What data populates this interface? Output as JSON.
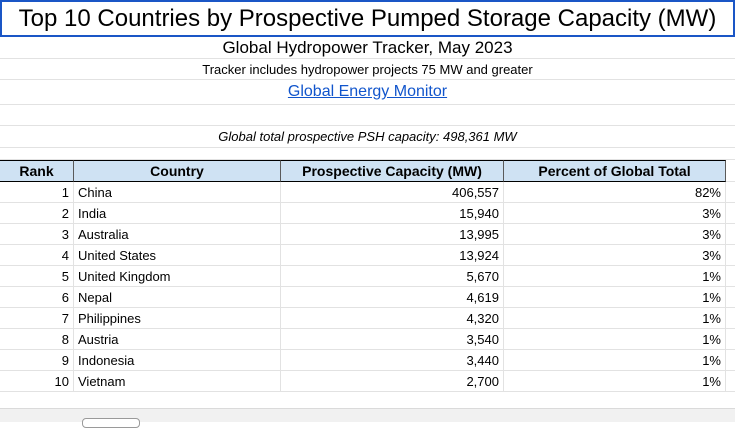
{
  "sheet": {
    "title": "Top 10 Countries by Prospective Pumped Storage Capacity (MW)",
    "subtitle": "Global Hydropower Tracker, May 2023",
    "note": "Tracker includes hydropower projects 75 MW and greater",
    "link_text": "Global Energy Monitor",
    "total_text": "Global total prospective PSH capacity: 498,361 MW"
  },
  "table": {
    "headers": {
      "rank": "Rank",
      "country": "Country",
      "capacity": "Prospective Capacity (MW)",
      "percent": "Percent of Global Total"
    },
    "rows": [
      {
        "rank": "1",
        "country": "China",
        "capacity": "406,557",
        "percent": "82%"
      },
      {
        "rank": "2",
        "country": "India",
        "capacity": "15,940",
        "percent": "3%"
      },
      {
        "rank": "3",
        "country": "Australia",
        "capacity": "13,995",
        "percent": "3%"
      },
      {
        "rank": "4",
        "country": "United States",
        "capacity": "13,924",
        "percent": "3%"
      },
      {
        "rank": "5",
        "country": "United Kingdom",
        "capacity": "5,670",
        "percent": "1%"
      },
      {
        "rank": "6",
        "country": "Nepal",
        "capacity": "4,619",
        "percent": "1%"
      },
      {
        "rank": "7",
        "country": "Philippines",
        "capacity": "4,320",
        "percent": "1%"
      },
      {
        "rank": "8",
        "country": "Austria",
        "capacity": "3,540",
        "percent": "1%"
      },
      {
        "rank": "9",
        "country": "Indonesia",
        "capacity": "3,440",
        "percent": "1%"
      },
      {
        "rank": "10",
        "country": "Vietnam",
        "capacity": "2,700",
        "percent": "1%"
      }
    ]
  },
  "colors": {
    "header_fill": "#cfe2f3",
    "title_border": "#1a56c6",
    "link": "#1155cc"
  }
}
